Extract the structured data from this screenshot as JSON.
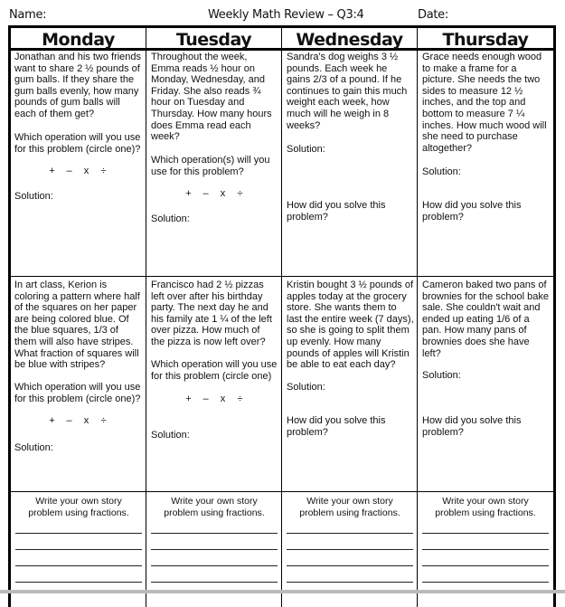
{
  "header": {
    "name_label": "Name:",
    "title": "Weekly Math Review – Q3:4",
    "date_label": "Date:"
  },
  "days": [
    "Monday",
    "Tuesday",
    "Wednesday",
    "Thursday"
  ],
  "operations": [
    "+",
    "–",
    "x",
    "÷"
  ],
  "row1": {
    "monday": {
      "problem": "Jonathan and his two friends\nwant to share 2 ½ pounds of\ngum balls. If they share the\ngum balls evenly, how many\npounds of gum balls will\neach of them get?",
      "question": "Which operation will you use\nfor this problem (circle one)?",
      "solution": "Solution:"
    },
    "tuesday": {
      "problem": "Throughout the week,\nEmma reads ½ hour on\nMonday, Wednesday, and\nFriday.  She also reads ¾\nhour on Tuesday and\nThursday.  How many hours\ndoes Emma read each\nweek?",
      "question": "Which operation(s) will you\nuse for this problem?",
      "solution": "Solution:"
    },
    "wednesday": {
      "problem": "Sandra's dog weighs 3 ½\npounds.  Each week he\ngains 2/3 of a pound.   If he\ncontinues to gain this much\nweight each week, how\nmuch will he weigh in 8\nweeks?",
      "solution": "Solution:",
      "how": "How did you solve this\nproblem?"
    },
    "thursday": {
      "problem": "Grace needs enough wood\nto make a frame for a\npicture. She needs the two\nsides to measure 12 ½\ninches, and the top and\nbottom to measure 7 ¼\ninches.  How much wood will\nshe need to purchase\naltogether?",
      "solution": "Solution:",
      "how": "How did you solve this\nproblem?"
    }
  },
  "row2": {
    "monday": {
      "problem": "In art class, Kerion is\ncoloring a pattern where half\nof the squares on her paper\nare being colored blue.  Of\nthe blue squares, 1/3 of\nthem will also have stripes.\nWhat fraction of squares will\nbe blue with stripes?",
      "question": "Which operation will you use\nfor this problem (circle one)?",
      "solution": "Solution:"
    },
    "tuesday": {
      "problem": "Francisco had 2 ½ pizzas\nleft over after his birthday\nparty.  The next day he and\nhis family ate 1 ¼ of the left\nover pizza.  How much of\nthe pizza is now left over?",
      "question": "Which operation will you use\nfor this problem (circle one)",
      "solution": "Solution:"
    },
    "wednesday": {
      "problem": "Kristin bought 3 ½ pounds of\napples today at the grocery\nstore.  She wants them to\nlast the entire week (7 days),\nso she is going to split them\nup evenly.  How many\npounds of apples will Kristin\nbe able to eat each day?",
      "solution": "Solution:",
      "how": "How did you solve this\nproblem?"
    },
    "thursday": {
      "problem": "Cameron baked two pans of\nbrownies for the school bake\nsale.  She couldn't wait and\nended up eating 1/6 of a\npan.  How many pans of\nbrownies does she have\nleft?",
      "solution": "Solution:",
      "how": "How did you solve this\nproblem?"
    }
  },
  "row3": {
    "prompt": "Write your own story\nproblem using fractions."
  }
}
